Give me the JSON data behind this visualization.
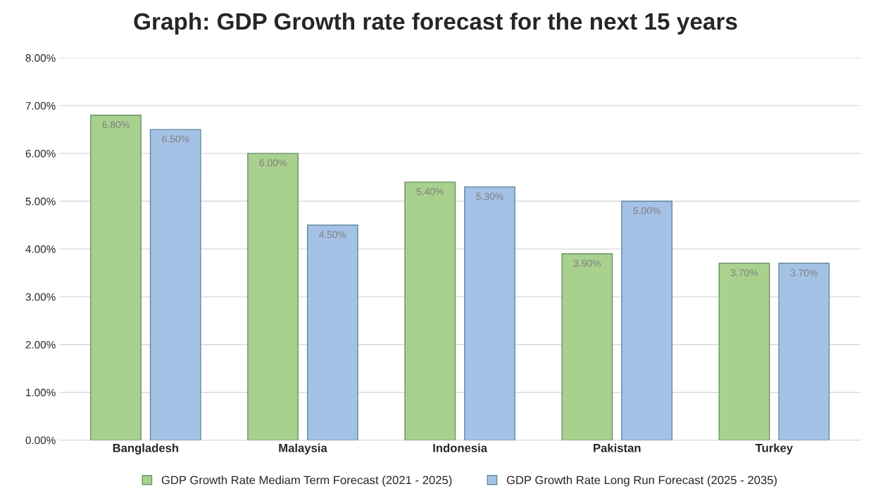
{
  "chart_data": {
    "type": "bar",
    "title": "Graph: GDP Growth rate forecast for the next 15 years",
    "categories": [
      "Bangladesh",
      "Malaysia",
      "Indonesia",
      "Pakistan",
      "Turkey"
    ],
    "series": [
      {
        "name": "GDP Growth Rate Mediam Term Forecast (2021 - 2025)",
        "color": "#a9d18e",
        "values": [
          6.8,
          6.0,
          5.4,
          3.9,
          3.7
        ],
        "value_labels": [
          "6.80%",
          "6.00%",
          "5.40%",
          "3.90%",
          "3.70%"
        ]
      },
      {
        "name": "GDP Growth Rate Long Run Forecast (2025 - 2035)",
        "color": "#a4c2e6",
        "values": [
          6.5,
          4.5,
          5.3,
          5.0,
          3.7
        ],
        "value_labels": [
          "6.50%",
          "4.50%",
          "5.30%",
          "5.00%",
          "3.70%"
        ]
      }
    ],
    "ylim": [
      0,
      8
    ],
    "yticks": [
      {
        "value": 0,
        "label": "0.00%"
      },
      {
        "value": 1,
        "label": "1.00%"
      },
      {
        "value": 2,
        "label": "2.00%"
      },
      {
        "value": 3,
        "label": "3.00%"
      },
      {
        "value": 4,
        "label": "4.00%"
      },
      {
        "value": 5,
        "label": "5.00%"
      },
      {
        "value": 6,
        "label": "6.00%"
      },
      {
        "value": 7,
        "label": "7.00%"
      },
      {
        "value": 8,
        "label": "8.00%"
      }
    ],
    "grid": "y",
    "legend": "bottom"
  }
}
